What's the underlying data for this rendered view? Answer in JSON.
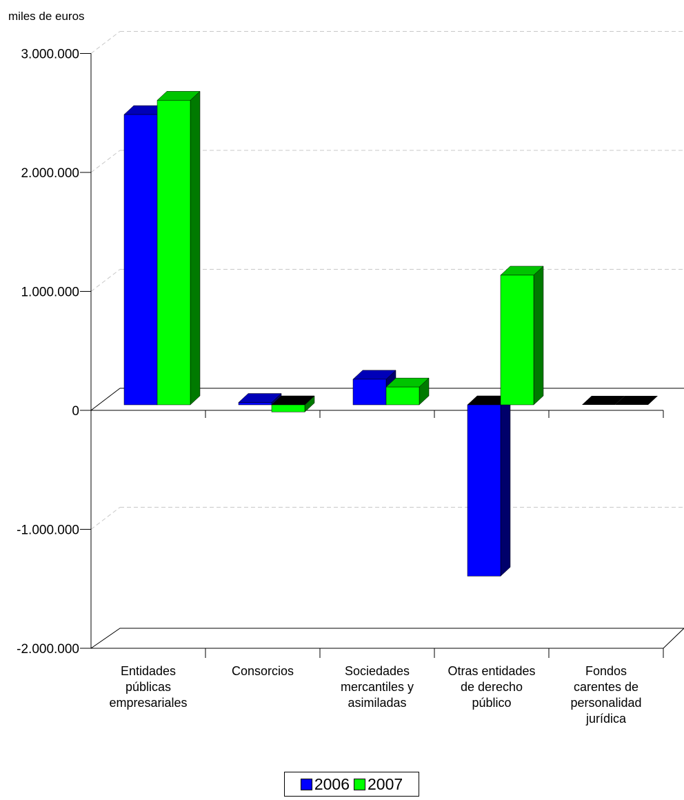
{
  "chart_data": {
    "type": "bar",
    "ylabel": "miles de euros",
    "ylim": [
      -2000000,
      3000000
    ],
    "yticks": [
      3000000,
      2000000,
      1000000,
      0,
      -1000000,
      -2000000
    ],
    "ytick_labels": [
      "3.000.000",
      "2.000.000",
      "1.000.000",
      "0",
      "-1.000.000",
      "-2.000.000"
    ],
    "categories": [
      "Entidades públicas empresariales",
      "Consorcios",
      "Sociedades mercantiles y asimiladas",
      "Otras entidades de derecho público",
      "Fondos carentes de personalidad jurídica"
    ],
    "category_lines": [
      [
        "Entidades",
        "públicas",
        "empresariales"
      ],
      [
        "Consorcios"
      ],
      [
        "Sociedades",
        "mercantiles y",
        "asimiladas"
      ],
      [
        "Otras entidades",
        "de derecho",
        "público"
      ],
      [
        "Fondos",
        "carentes de",
        "personalidad",
        "jurídica"
      ]
    ],
    "series": [
      {
        "name": "2006",
        "values": [
          2440000,
          20000,
          215000,
          -1440000,
          0
        ]
      },
      {
        "name": "2007",
        "values": [
          2560000,
          -60000,
          150000,
          1090000,
          0
        ]
      }
    ],
    "grid": true,
    "legend_position": "bottom",
    "colors": {
      "2006": "#0000ff",
      "2007": "#00ff00"
    }
  }
}
